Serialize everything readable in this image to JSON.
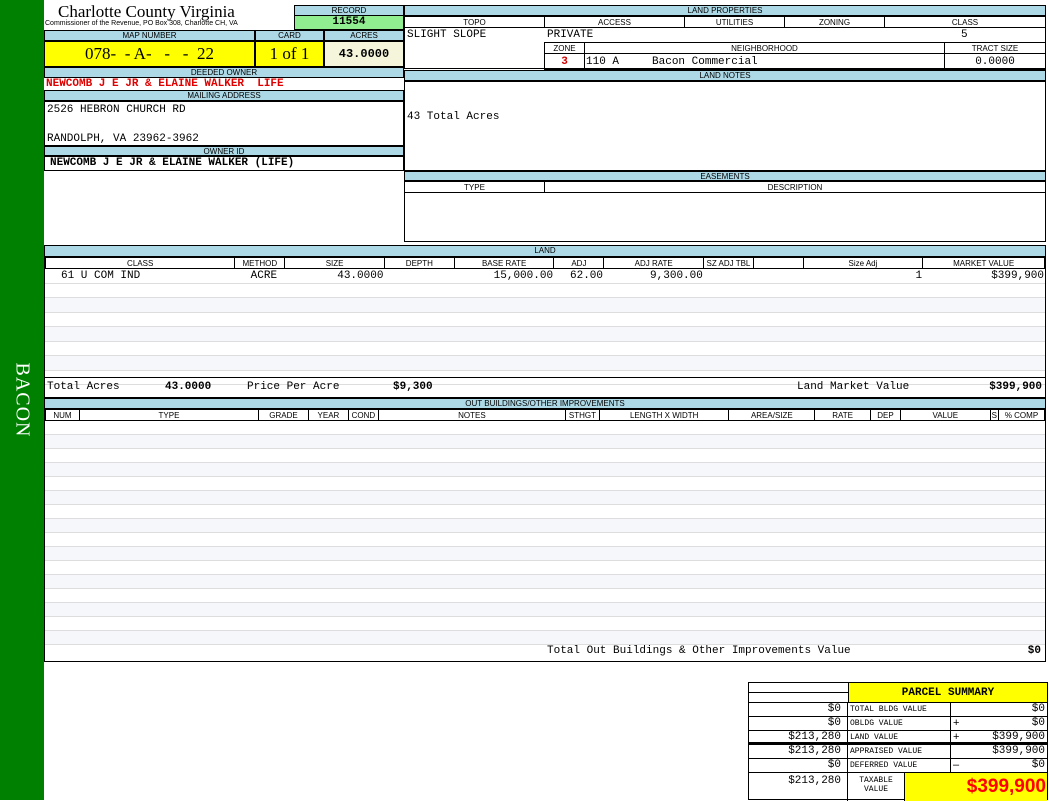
{
  "sidebar": {
    "label": "BACON",
    "color": "#008000"
  },
  "header": {
    "county": "Charlotte County Virginia",
    "office": "Commissioner of the Revenue, PO Box 308, Charlotte CH, VA"
  },
  "record": {
    "label": "RECORD",
    "value": "11554"
  },
  "map": {
    "label": "MAP NUMBER",
    "value": "078-  - A-   -   -  22"
  },
  "card": {
    "label": "CARD",
    "value": "1 of 1"
  },
  "acres": {
    "label": "ACRES",
    "value": "43.0000"
  },
  "deeded_owner": {
    "label": "DEEDED OWNER",
    "value": "NEWCOMB J E JR & ELAINE WALKER  LIFE"
  },
  "mailing": {
    "label": "MAILING ADDRESS",
    "line1": "2526 HEBRON CHURCH RD",
    "line2": "RANDOLPH, VA 23962-3962"
  },
  "owner_id": {
    "label": "OWNER ID",
    "value": "NEWCOMB J E JR & ELAINE WALKER (LIFE)"
  },
  "land_properties": {
    "label": "LAND PROPERTIES",
    "topo_label": "TOPO",
    "access_label": "ACCESS",
    "utilities_label": "UTILITIES",
    "zoning_label": "ZONING",
    "class_label": "CLASS",
    "topo": "SLIGHT SLOPE",
    "access": "PRIVATE",
    "class": "5",
    "zone_label": "ZONE",
    "neighborhood_label": "NEIGHBORHOOD",
    "tract_label": "TRACT SIZE",
    "zone": "3",
    "neighborhood_code": "110 A",
    "neighborhood": "Bacon Commercial",
    "tract": "0.0000"
  },
  "land_notes": {
    "label": "LAND NOTES",
    "text": "43 Total Acres"
  },
  "easements": {
    "label": "EASEMENTS",
    "type_label": "TYPE",
    "desc_label": "DESCRIPTION"
  },
  "land": {
    "label": "LAND",
    "columns": [
      "CLASS",
      "METHOD",
      "SIZE",
      "DEPTH",
      "BASE RATE",
      "ADJ",
      "ADJ RATE",
      "SZ ADJ TBL",
      "",
      "Size Adj",
      "MARKET VALUE"
    ],
    "rows": [
      [
        "61 U COM IND",
        "ACRE",
        "43.0000",
        "",
        "15,000.00",
        "62.00",
        "9,300.00",
        "",
        "",
        "1",
        "$399,900"
      ]
    ],
    "total_acres_label": "Total Acres",
    "total_acres": "43.0000",
    "price_label": "Price Per Acre",
    "price": "$9,300",
    "market_label": "Land Market Value",
    "market": "$399,900"
  },
  "outbuildings": {
    "label": "OUT BUILDINGS/OTHER IMPROVEMENTS",
    "columns": [
      "NUM",
      "TYPE",
      "GRADE",
      "YEAR",
      "COND",
      "NOTES",
      "STHGT",
      "LENGTH X WIDTH",
      "AREA/SIZE",
      "RATE",
      "DEP",
      "VALUE",
      "S",
      "% COMP"
    ],
    "total_label": "Total Out Buildings & Other Improvements Value",
    "total": "$0"
  },
  "summary": {
    "title": "PARCEL SUMMARY",
    "rows": [
      {
        "prev": "$0",
        "label": "TOTAL BLDG VALUE",
        "op": "",
        "value": "$0"
      },
      {
        "prev": "$0",
        "label": "OBLDG VALUE",
        "op": "+",
        "value": "$0"
      },
      {
        "prev": "$213,280",
        "label": "LAND VALUE",
        "op": "+",
        "value": "$399,900"
      },
      {
        "prev": "$213,280",
        "label": "APPRAISED VALUE",
        "op": "",
        "value": "$399,900"
      },
      {
        "prev": "$0",
        "label": "DEFERRED VALUE",
        "op": "–",
        "value": "$0"
      }
    ],
    "taxable_prev": "$213,280",
    "taxable_label": "TAXABLE VALUE",
    "taxable": "$399,900"
  }
}
